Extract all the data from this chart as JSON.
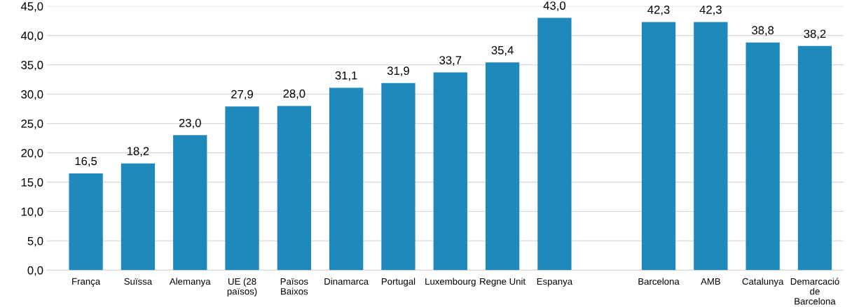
{
  "chart_data": {
    "type": "bar",
    "categories": [
      "França",
      "Suïssa",
      "Alemanya",
      "UE (28\npaïsos)",
      "Països\nBaixos",
      "Dinamarca",
      "Portugal",
      "Luxembourg",
      "Regne Unit",
      "Espanya",
      null,
      "Barcelona",
      "AMB",
      "Catalunya",
      "Demarcació\nde\nBarcelona"
    ],
    "values": [
      16.5,
      18.2,
      23.0,
      27.9,
      28.0,
      31.1,
      31.9,
      33.7,
      35.4,
      43.0,
      null,
      42.3,
      42.3,
      38.8,
      38.2
    ],
    "value_labels": [
      "16,5",
      "18,2",
      "23,0",
      "27,9",
      "28,0",
      "31,1",
      "31,9",
      "33,7",
      "35,4",
      "43,0",
      null,
      "42,3",
      "42,3",
      "38,8",
      "38,2"
    ],
    "color": "#1f89bb",
    "ylim": [
      0,
      45
    ],
    "yticks": [
      {
        "value": 0,
        "label": "0,0"
      },
      {
        "value": 5,
        "label": "5,0"
      },
      {
        "value": 10,
        "label": "10,0"
      },
      {
        "value": 15,
        "label": "15,0"
      },
      {
        "value": 20,
        "label": "20,0"
      },
      {
        "value": 25,
        "label": "25,0"
      },
      {
        "value": 30,
        "label": "30,0"
      },
      {
        "value": 35,
        "label": "35,0"
      },
      {
        "value": 40,
        "label": "40,0"
      },
      {
        "value": 45,
        "label": "45,0"
      }
    ],
    "grid": "y"
  }
}
